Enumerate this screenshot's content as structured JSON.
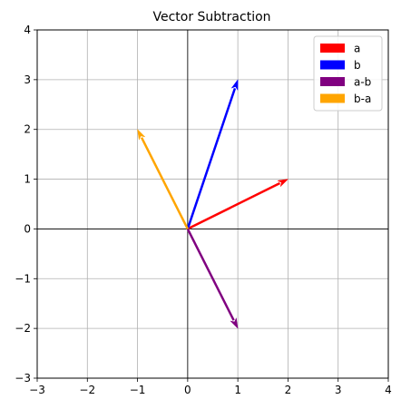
{
  "chart_data": {
    "type": "vector",
    "title": "Vector Subtraction",
    "xlabel": "",
    "ylabel": "",
    "xlim": [
      -3,
      4
    ],
    "ylim": [
      -3,
      4
    ],
    "xticks": [
      -3,
      -2,
      -1,
      0,
      1,
      2,
      3,
      4
    ],
    "yticks": [
      -3,
      -2,
      -1,
      0,
      1,
      2,
      3,
      4
    ],
    "grid": true,
    "axis_lines_through_origin": true,
    "legend_position": "top-right",
    "vectors": [
      {
        "name": "a",
        "origin": [
          0,
          0
        ],
        "components": [
          2,
          1
        ],
        "color": "#ff0000"
      },
      {
        "name": "b",
        "origin": [
          0,
          0
        ],
        "components": [
          1,
          3
        ],
        "color": "#0000ff"
      },
      {
        "name": "a-b",
        "origin": [
          0,
          0
        ],
        "components": [
          1,
          -2
        ],
        "color": "#800080"
      },
      {
        "name": "b-a",
        "origin": [
          0,
          0
        ],
        "components": [
          -1,
          2
        ],
        "color": "#ffa500"
      }
    ]
  }
}
